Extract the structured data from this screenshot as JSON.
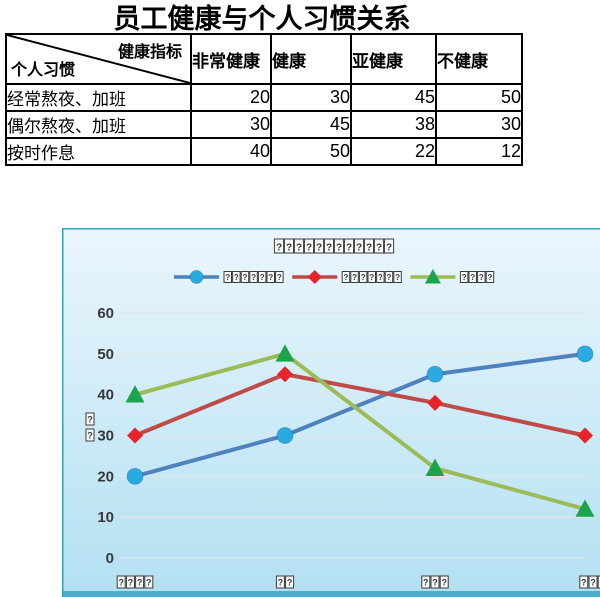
{
  "document": {
    "title": "员工健康与个人习惯关系"
  },
  "table": {
    "corner": {
      "top_right": "健康指标",
      "bottom_left": "个人习惯"
    },
    "columns": [
      "非常健康",
      "健康",
      "亚健康",
      "不健康"
    ],
    "rows": [
      {
        "label": "经常熬夜、加班",
        "values": [
          "20",
          "30",
          "45",
          "50"
        ]
      },
      {
        "label": "偶尔熬夜、加班",
        "values": [
          "30",
          "45",
          "38",
          "30"
        ]
      },
      {
        "label": "按时作息",
        "values": [
          "40",
          "50",
          "22",
          "12"
        ]
      }
    ]
  },
  "chart_data": {
    "type": "line",
    "labels_rendered_as": "missing-glyph tofu boxes (CJK font not embedded in chart)",
    "title_tofu_count": 12,
    "categories": [
      "非常健康",
      "健康",
      "亚健康",
      "不健康"
    ],
    "category_tofu_counts": [
      4,
      2,
      3,
      3
    ],
    "series": [
      {
        "name": "经常熬夜、加班",
        "tofu_count": 7,
        "values": [
          20,
          30,
          45,
          50
        ],
        "line_color": "#4F81BD",
        "marker": "circle",
        "marker_color": "#29ABE2"
      },
      {
        "name": "偶尔熬夜、加班",
        "tofu_count": 7,
        "values": [
          30,
          45,
          38,
          30
        ],
        "line_color": "#BE4B48",
        "marker": "diamond",
        "marker_color": "#E8232A"
      },
      {
        "name": "按时作息",
        "tofu_count": 4,
        "values": [
          40,
          50,
          22,
          12
        ],
        "line_color": "#9BBB59",
        "marker": "triangle",
        "marker_color": "#1CA44A"
      }
    ],
    "ylim": [
      0,
      60
    ],
    "yticks": [
      0,
      10,
      20,
      30,
      40,
      50,
      60
    ],
    "ylabel_tofu_count": 2,
    "grid": true,
    "legend_position": "top",
    "style": {
      "bg_top": "#EBF6FC",
      "bg_bottom": "#B2E0F2",
      "border": "#35A3B5",
      "bottom_band": "#4FAECB",
      "gridline": "#E0E6E9",
      "text": "#383838",
      "tofu_border": "#3A3A3A",
      "tofu_fill": "#F7FAFB"
    }
  }
}
